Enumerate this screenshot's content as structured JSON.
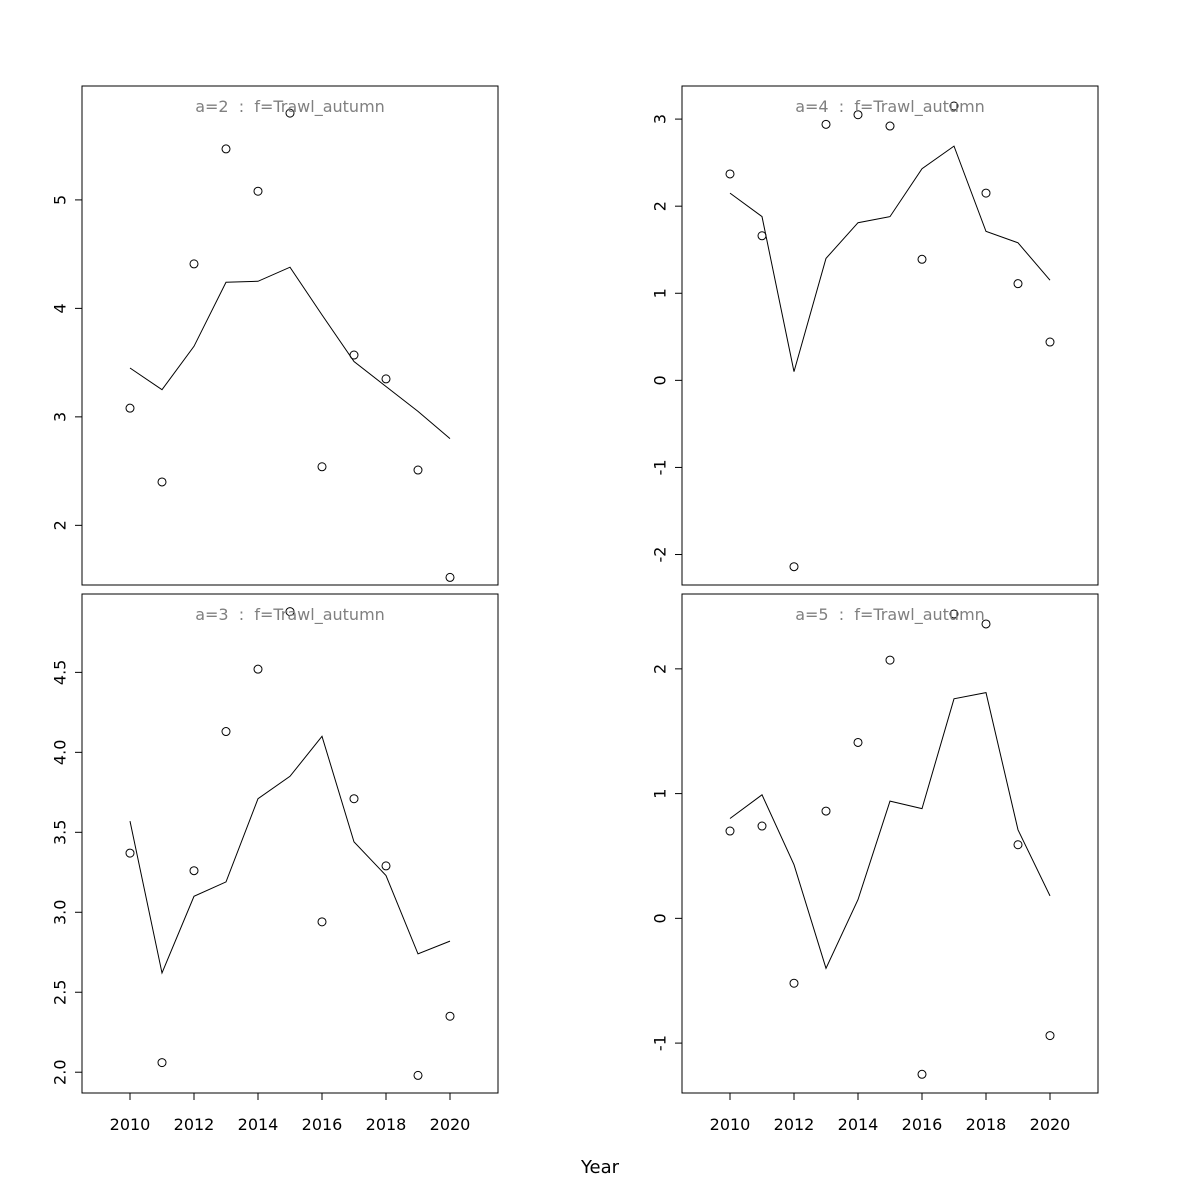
{
  "chart_data": {
    "type": "line",
    "xlabel": "Year",
    "x_ticks": [
      2010,
      2012,
      2014,
      2016,
      2018,
      2020
    ],
    "panels": [
      {
        "title": "a=2  :  f=Trawl_autumn",
        "x": [
          2010,
          2011,
          2012,
          2013,
          2014,
          2015,
          2016,
          2017,
          2018,
          2019,
          2020
        ],
        "observed": [
          3.08,
          2.4,
          4.41,
          5.47,
          5.08,
          5.8,
          2.54,
          3.57,
          3.35,
          2.51,
          1.52
        ],
        "fitted": [
          3.45,
          3.25,
          3.65,
          4.24,
          4.25,
          4.38,
          3.94,
          3.51,
          3.28,
          3.05,
          2.8
        ],
        "ylim": [
          1.45,
          6.05
        ],
        "y_ticks": [
          2,
          3,
          4,
          5
        ]
      },
      {
        "title": "a=4  :  f=Trawl_autumn",
        "x": [
          2010,
          2011,
          2012,
          2013,
          2014,
          2015,
          2016,
          2017,
          2018,
          2019,
          2020
        ],
        "observed": [
          2.37,
          1.66,
          -2.14,
          2.94,
          3.05,
          2.92,
          1.39,
          3.15,
          2.15,
          1.11,
          0.44
        ],
        "fitted": [
          2.15,
          1.88,
          0.1,
          1.4,
          1.81,
          1.88,
          2.43,
          2.69,
          1.71,
          1.58,
          1.15
        ],
        "ylim": [
          -2.35,
          3.38
        ],
        "y_ticks": [
          -2,
          -1,
          0,
          1,
          2,
          3
        ]
      },
      {
        "title": "a=3  :  f=Trawl_autumn",
        "x": [
          2010,
          2011,
          2012,
          2013,
          2014,
          2015,
          2016,
          2017,
          2018,
          2019,
          2020
        ],
        "observed": [
          3.37,
          2.06,
          3.26,
          4.13,
          4.52,
          4.88,
          2.94,
          3.71,
          3.29,
          1.98,
          2.35
        ],
        "fitted": [
          3.57,
          2.62,
          3.1,
          3.19,
          3.71,
          3.85,
          4.1,
          3.44,
          3.23,
          2.74,
          2.82
        ],
        "ylim": [
          1.87,
          4.99
        ],
        "y_ticks": [
          2.0,
          2.5,
          3.0,
          3.5,
          4.0,
          4.5
        ]
      },
      {
        "title": "a=5  :  f=Trawl_autumn",
        "x": [
          2010,
          2011,
          2012,
          2013,
          2014,
          2015,
          2016,
          2017,
          2018,
          2019,
          2020
        ],
        "observed": [
          0.7,
          0.74,
          -0.52,
          0.86,
          1.41,
          2.07,
          -1.25,
          2.44,
          2.36,
          0.59,
          -0.94
        ],
        "fitted": [
          0.8,
          0.99,
          0.43,
          -0.4,
          0.15,
          0.94,
          0.88,
          1.76,
          1.81,
          0.71,
          0.18
        ],
        "ylim": [
          -1.4,
          2.6
        ],
        "y_ticks": [
          -1,
          0,
          1,
          2
        ]
      }
    ]
  }
}
